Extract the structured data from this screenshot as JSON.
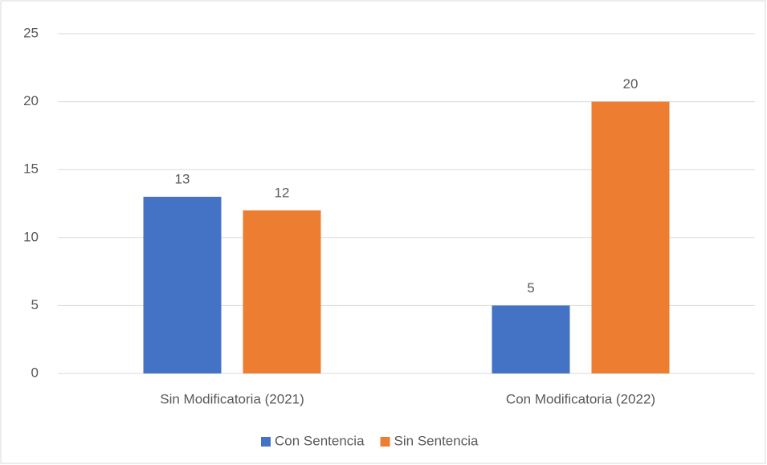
{
  "chart_data": {
    "type": "bar",
    "categories": [
      "Sin Modificatoria (2021)",
      "Con Modificatoria (2022)"
    ],
    "series": [
      {
        "name": "Con Sentencia",
        "color": "#4472c4",
        "values": [
          13,
          5
        ]
      },
      {
        "name": "Sin Sentencia",
        "color": "#ed7d31",
        "values": [
          12,
          20
        ]
      }
    ],
    "ylim": [
      0,
      25
    ],
    "yticks": [
      0,
      5,
      10,
      15,
      20,
      25
    ],
    "grid": true,
    "legend": "bottom",
    "data_labels": true
  }
}
